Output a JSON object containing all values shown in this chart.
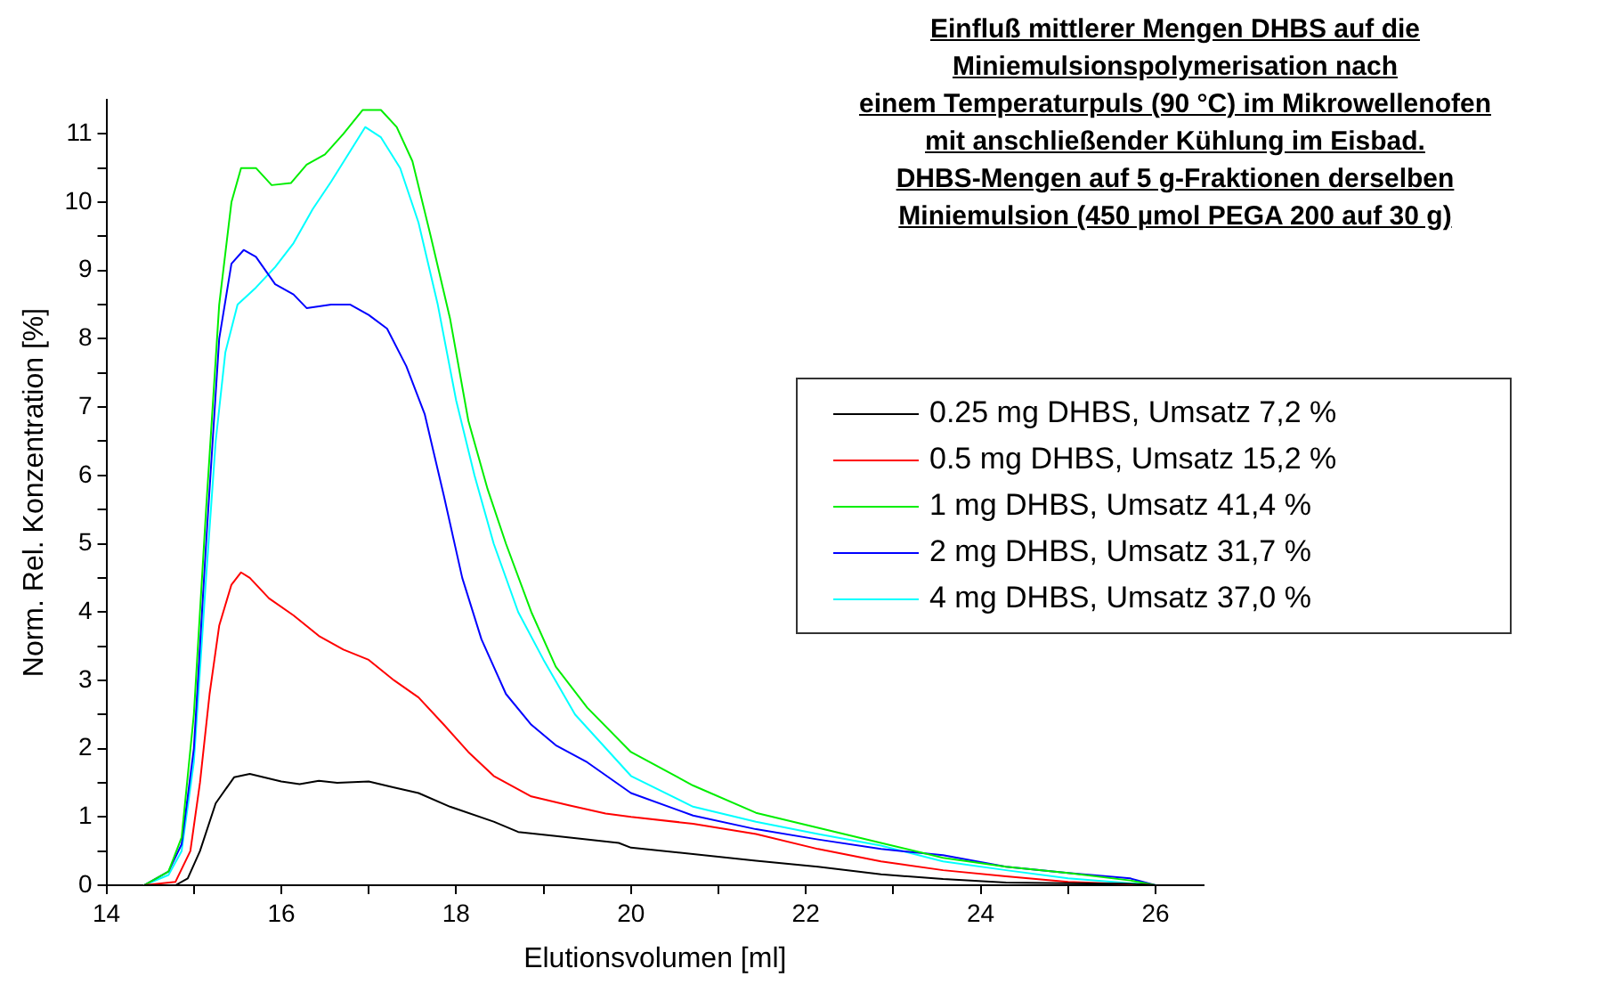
{
  "chart_data": {
    "type": "line",
    "title": "Einfluß mittlerer Mengen DHBS auf die\nMiniemulsionspolymerisation nach\neinem Temperaturpuls (90 °C) im Mikrowellenofen\nmit anschließender Kühlung im Eisbad.\nDHBS-Mengen auf 5 g-Fraktionen derselben\nMiniemulsion (450 µmol PEGA 200 auf 30 g)",
    "xlabel": "Elutionsvolumen [ml]",
    "ylabel": "Norm. Rel. Konzentration [%]",
    "xlim": [
      14,
      26.55
    ],
    "ylim": [
      0,
      11.5
    ],
    "xticks": [
      14,
      {
        "value": 15,
        "label": null
      },
      16,
      {
        "value": 17,
        "label": null
      },
      18,
      {
        "value": 19,
        "label": null
      },
      20,
      {
        "value": 21,
        "label": null
      },
      22,
      {
        "value": 23,
        "label": null
      },
      24,
      {
        "value": 25,
        "label": null
      },
      26
    ],
    "yticks": [
      0,
      {
        "value": 0.5,
        "label": null
      },
      1,
      {
        "value": 1.5,
        "label": null
      },
      2,
      {
        "value": 2.5,
        "label": null
      },
      3,
      {
        "value": 3.5,
        "label": null
      },
      4,
      {
        "value": 4.5,
        "label": null
      },
      5,
      {
        "value": 5.5,
        "label": null
      },
      6,
      {
        "value": 6.5,
        "label": null
      },
      7,
      {
        "value": 7.5,
        "label": null
      },
      8,
      {
        "value": 8.5,
        "label": null
      },
      9,
      {
        "value": 9.5,
        "label": null
      },
      10,
      {
        "value": 10.5,
        "label": null
      },
      11
    ],
    "grid": false,
    "legend": "right",
    "marker": "none",
    "line_style": "solid",
    "series": [
      {
        "name": "0.25 mg DHBS, Umsatz 7,2 %",
        "color": "#000000",
        "x": [
          14.43,
          14.79,
          14.93,
          15.07,
          15.25,
          15.46,
          15.64,
          16.0,
          16.21,
          16.43,
          16.64,
          17.0,
          17.29,
          17.57,
          17.93,
          18.43,
          18.71,
          19.14,
          19.86,
          20.0,
          21.43,
          22.14,
          22.86,
          23.57,
          24.29,
          25.71,
          26.0
        ],
        "values": [
          0,
          0,
          0.1,
          0.5,
          1.2,
          1.58,
          1.63,
          1.52,
          1.48,
          1.53,
          1.5,
          1.52,
          1.43,
          1.35,
          1.15,
          0.93,
          0.78,
          0.72,
          0.62,
          0.55,
          0.36,
          0.27,
          0.16,
          0.09,
          0.04,
          0.02,
          0
        ]
      },
      {
        "name": "0.5 mg DHBS, Umsatz 15,2 %",
        "color": "#ff0000",
        "x": [
          14.43,
          14.79,
          14.96,
          15.07,
          15.18,
          15.29,
          15.43,
          15.54,
          15.64,
          15.86,
          16.14,
          16.43,
          16.71,
          17.0,
          17.29,
          17.57,
          17.86,
          18.14,
          18.43,
          18.86,
          19.29,
          19.71,
          20.0,
          20.71,
          21.43,
          22.14,
          22.86,
          23.57,
          24.29,
          25.0,
          26.0
        ],
        "values": [
          0,
          0.05,
          0.5,
          1.5,
          2.8,
          3.8,
          4.4,
          4.58,
          4.5,
          4.2,
          3.95,
          3.65,
          3.45,
          3.3,
          3.0,
          2.75,
          2.35,
          1.95,
          1.6,
          1.3,
          1.17,
          1.05,
          1.0,
          0.9,
          0.75,
          0.53,
          0.35,
          0.22,
          0.13,
          0.05,
          0
        ]
      },
      {
        "name": "1 mg DHBS, Umsatz 41,4 %",
        "color": "#00ee00",
        "x": [
          14.43,
          14.71,
          14.86,
          15.0,
          15.14,
          15.29,
          15.43,
          15.54,
          15.71,
          15.89,
          16.11,
          16.29,
          16.5,
          16.71,
          16.93,
          17.14,
          17.32,
          17.5,
          17.71,
          17.93,
          18.14,
          18.36,
          18.57,
          18.86,
          19.14,
          19.5,
          20.0,
          20.71,
          21.43,
          22.14,
          22.86,
          23.57,
          24.29,
          25.0,
          25.71,
          26.0
        ],
        "values": [
          0,
          0.2,
          0.7,
          2.5,
          5.5,
          8.5,
          10.0,
          10.5,
          10.5,
          10.25,
          10.28,
          10.55,
          10.7,
          11.0,
          11.35,
          11.35,
          11.1,
          10.6,
          9.5,
          8.3,
          6.8,
          5.8,
          5.0,
          4.0,
          3.2,
          2.6,
          1.95,
          1.46,
          1.06,
          0.84,
          0.62,
          0.4,
          0.27,
          0.18,
          0.07,
          0
        ]
      },
      {
        "name": "2 mg DHBS, Umsatz 31,7 %",
        "color": "#0000ff",
        "x": [
          14.43,
          14.71,
          14.86,
          15.0,
          15.14,
          15.29,
          15.43,
          15.57,
          15.71,
          15.93,
          16.14,
          16.29,
          16.57,
          16.79,
          17.0,
          17.21,
          17.43,
          17.64,
          17.86,
          18.07,
          18.29,
          18.57,
          18.86,
          19.14,
          19.5,
          20.0,
          20.71,
          21.43,
          22.14,
          22.86,
          23.57,
          24.29,
          25.0,
          25.71,
          26.0
        ],
        "values": [
          0,
          0.2,
          0.6,
          2.0,
          5.0,
          8.0,
          9.1,
          9.3,
          9.2,
          8.8,
          8.65,
          8.45,
          8.5,
          8.5,
          8.35,
          8.15,
          7.6,
          6.9,
          5.7,
          4.5,
          3.6,
          2.8,
          2.35,
          2.05,
          1.8,
          1.35,
          1.02,
          0.82,
          0.67,
          0.53,
          0.44,
          0.27,
          0.18,
          0.1,
          0
        ]
      },
      {
        "name": "4 mg DHBS, Umsatz 37,0 %",
        "color": "#00ffff",
        "x": [
          14.43,
          14.71,
          14.86,
          15.0,
          15.14,
          15.25,
          15.36,
          15.5,
          15.71,
          15.93,
          16.14,
          16.36,
          16.57,
          16.79,
          16.96,
          17.14,
          17.36,
          17.57,
          17.79,
          18.0,
          18.21,
          18.43,
          18.71,
          19.0,
          19.36,
          20.0,
          20.71,
          21.43,
          22.14,
          22.86,
          23.57,
          24.29,
          25.0,
          26.0
        ],
        "values": [
          0,
          0.15,
          0.5,
          1.8,
          4.5,
          6.5,
          7.8,
          8.5,
          8.75,
          9.05,
          9.4,
          9.9,
          10.3,
          10.75,
          11.1,
          10.95,
          10.5,
          9.7,
          8.5,
          7.1,
          6.0,
          5.0,
          4.0,
          3.3,
          2.5,
          1.6,
          1.15,
          0.93,
          0.75,
          0.58,
          0.35,
          0.22,
          0.1,
          0
        ]
      }
    ]
  }
}
